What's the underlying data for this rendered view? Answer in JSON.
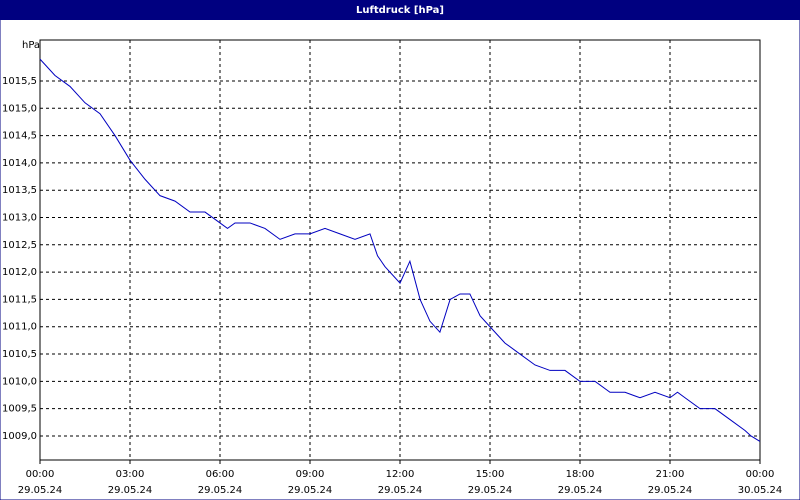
{
  "chart_data": {
    "type": "line",
    "title": "Luftdruck [hPa]",
    "y_unit": "hPa",
    "x": [
      0,
      0.5,
      1,
      1.5,
      2,
      2.5,
      3,
      3.5,
      4,
      4.5,
      5,
      5.5,
      6,
      6.25,
      6.5,
      7,
      7.5,
      8,
      8.5,
      9,
      9.5,
      10,
      10.5,
      11,
      11.25,
      11.5,
      12,
      12.33,
      12.67,
      13,
      13.33,
      13.67,
      14,
      14.33,
      14.67,
      15,
      15.5,
      16,
      16.5,
      17,
      17.5,
      18,
      18.5,
      19,
      19.5,
      20,
      20.5,
      21,
      21.25,
      21.5,
      22,
      22.5,
      23,
      23.5,
      23.7,
      24
    ],
    "series": [
      {
        "name": "Luftdruck",
        "color": "#0000c0",
        "values": [
          1015.9,
          1015.6,
          1015.4,
          1015.1,
          1014.9,
          1014.5,
          1014.05,
          1013.7,
          1013.4,
          1013.3,
          1013.1,
          1013.1,
          1012.9,
          1012.8,
          1012.9,
          1012.9,
          1012.8,
          1012.6,
          1012.7,
          1012.7,
          1012.8,
          1012.7,
          1012.6,
          1012.7,
          1012.3,
          1012.1,
          1011.8,
          1012.2,
          1011.5,
          1011.1,
          1010.9,
          1011.5,
          1011.6,
          1011.6,
          1011.2,
          1011.0,
          1010.7,
          1010.5,
          1010.3,
          1010.2,
          1010.2,
          1010.0,
          1010.0,
          1009.8,
          1009.8,
          1009.7,
          1009.8,
          1009.7,
          1009.8,
          1009.7,
          1009.5,
          1009.5,
          1009.3,
          1009.1,
          1009.0,
          1008.9
        ]
      }
    ],
    "xlim": [
      0,
      24
    ],
    "ylim": [
      1008.56,
      1016.25
    ],
    "xticks": [
      {
        "value": 0,
        "label": "00:00"
      },
      {
        "value": 3,
        "label": "03:00"
      },
      {
        "value": 6,
        "label": "06:00"
      },
      {
        "value": 9,
        "label": "09:00"
      },
      {
        "value": 12,
        "label": "12:00"
      },
      {
        "value": 15,
        "label": "15:00"
      },
      {
        "value": 18,
        "label": "18:00"
      },
      {
        "value": 21,
        "label": "21:00"
      },
      {
        "value": 24,
        "label": "00:00"
      }
    ],
    "xtick_dates": [
      "29.05.24",
      "29.05.24",
      "29.05.24",
      "29.05.24",
      "29.05.24",
      "29.05.24",
      "29.05.24",
      "29.05.24",
      "30.05.24"
    ],
    "yticks": [
      {
        "value": 1009,
        "label": "1009,0"
      },
      {
        "value": 1009.5,
        "label": "1009,5"
      },
      {
        "value": 1010,
        "label": "1010,0"
      },
      {
        "value": 1010.5,
        "label": "1010,5"
      },
      {
        "value": 1011,
        "label": "1011,0"
      },
      {
        "value": 1011.5,
        "label": "1011,5"
      },
      {
        "value": 1012,
        "label": "1012,0"
      },
      {
        "value": 1012.5,
        "label": "1012,5"
      },
      {
        "value": 1013,
        "label": "1013,0"
      },
      {
        "value": 1013.5,
        "label": "1013,5"
      },
      {
        "value": 1014,
        "label": "1014,0"
      },
      {
        "value": 1014.5,
        "label": "1014,5"
      },
      {
        "value": 1015,
        "label": "1015,0"
      },
      {
        "value": 1015.5,
        "label": "1015,5"
      }
    ],
    "grid": true
  }
}
